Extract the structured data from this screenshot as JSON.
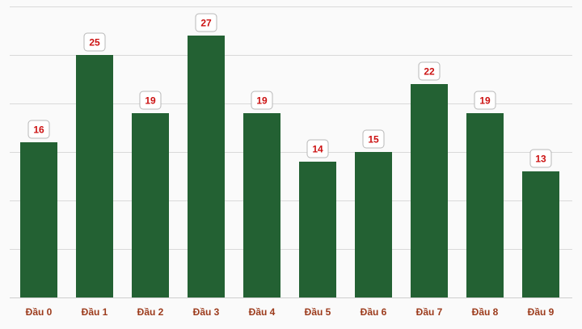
{
  "chart_data": {
    "type": "bar",
    "categories": [
      "Đầu 0",
      "Đầu 1",
      "Đầu 2",
      "Đầu 3",
      "Đầu 4",
      "Đầu 5",
      "Đầu 6",
      "Đầu 7",
      "Đầu 8",
      "Đầu 9"
    ],
    "values": [
      16,
      25,
      19,
      27,
      19,
      14,
      15,
      22,
      19,
      13
    ],
    "ylim": [
      0,
      30
    ],
    "y_grid_step": 5,
    "grid": true,
    "legend": "none",
    "data_labels": true,
    "colors": {
      "bar": "#236133",
      "data_label": "#cc1111",
      "tick_label": "#9c3b1c",
      "grid": "#d9d9d9"
    }
  }
}
